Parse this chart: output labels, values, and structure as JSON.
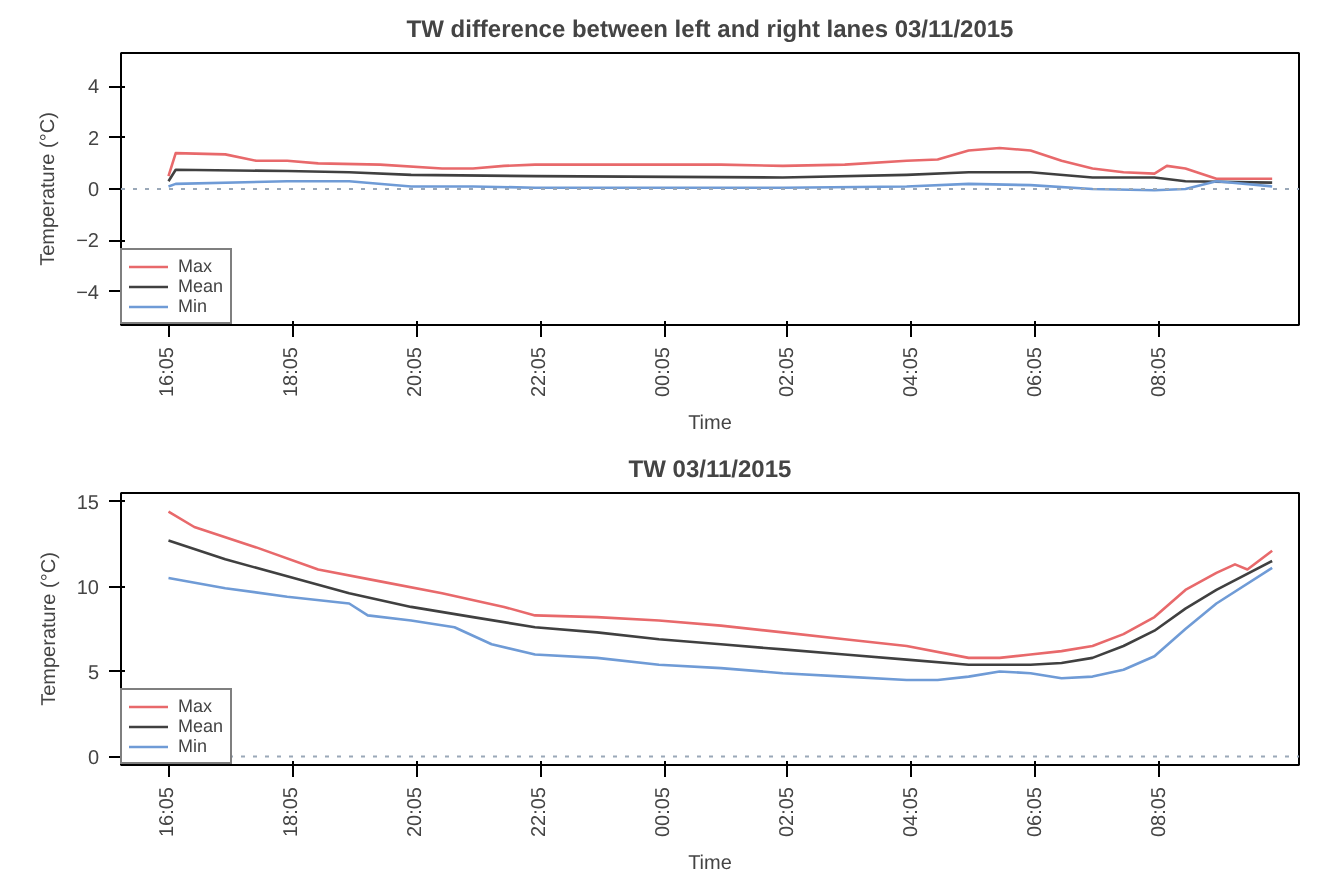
{
  "chart_data": [
    {
      "type": "line",
      "title": "TW difference between left and right lanes 03/11/2015",
      "xlabel": "Time",
      "ylabel": "Temperature (°C)",
      "xlim": [
        "2015-11-03T15:19",
        "2015-11-04T10:20"
      ],
      "ylim": [
        -5.3,
        5.3
      ],
      "xticks": [
        {
          "value": "2015-11-03T16:05",
          "label": "16:05"
        },
        {
          "value": "2015-11-03T18:05",
          "label": "18:05"
        },
        {
          "value": "2015-11-03T20:05",
          "label": "20:05"
        },
        {
          "value": "2015-11-03T22:05",
          "label": "22:05"
        },
        {
          "value": "2015-11-04T00:05",
          "label": "00:05"
        },
        {
          "value": "2015-11-04T02:05",
          "label": "02:05"
        },
        {
          "value": "2015-11-04T04:05",
          "label": "04:05"
        },
        {
          "value": "2015-11-04T06:05",
          "label": "06:05"
        },
        {
          "value": "2015-11-04T08:05",
          "label": "08:05"
        }
      ],
      "yticks": [
        -4,
        -2,
        0,
        2,
        4
      ],
      "grid": false,
      "legend": "bottom left",
      "line_style": "solid",
      "marker": "none",
      "ref_lines": [
        {
          "axis": "y",
          "value": 0,
          "color": "#9aa8b8",
          "line_style": "dotted"
        }
      ],
      "series": [
        {
          "name": "Max",
          "color": "#e8696b",
          "x": [
            "2015-11-03T16:05",
            "2015-11-03T16:12",
            "2015-11-03T17:00",
            "2015-11-03T17:30",
            "2015-11-03T18:00",
            "2015-11-03T18:30",
            "2015-11-03T19:30",
            "2015-11-03T20:30",
            "2015-11-03T21:00",
            "2015-11-03T21:30",
            "2015-11-03T22:00",
            "2015-11-04T00:00",
            "2015-11-04T01:00",
            "2015-11-04T02:00",
            "2015-11-04T03:00",
            "2015-11-04T04:00",
            "2015-11-04T04:30",
            "2015-11-04T05:00",
            "2015-11-04T05:30",
            "2015-11-04T06:00",
            "2015-11-04T06:30",
            "2015-11-04T07:00",
            "2015-11-04T07:30",
            "2015-11-04T08:00",
            "2015-11-04T08:12",
            "2015-11-04T08:30",
            "2015-11-04T09:00",
            "2015-11-04T09:54"
          ],
          "values": [
            0.5,
            1.4,
            1.35,
            1.1,
            1.1,
            1.0,
            0.95,
            0.8,
            0.8,
            0.9,
            0.95,
            0.95,
            0.95,
            0.9,
            0.95,
            1.1,
            1.15,
            1.5,
            1.6,
            1.5,
            1.1,
            0.8,
            0.65,
            0.6,
            0.9,
            0.8,
            0.4,
            0.4
          ]
        },
        {
          "name": "Mean",
          "color": "#404040",
          "x": [
            "2015-11-03T16:05",
            "2015-11-03T16:12",
            "2015-11-03T18:00",
            "2015-11-03T19:00",
            "2015-11-03T20:00",
            "2015-11-03T22:00",
            "2015-11-04T02:00",
            "2015-11-04T04:00",
            "2015-11-04T05:00",
            "2015-11-04T06:00",
            "2015-11-04T07:00",
            "2015-11-04T08:00",
            "2015-11-04T08:30",
            "2015-11-04T09:54"
          ],
          "values": [
            0.3,
            0.75,
            0.7,
            0.65,
            0.55,
            0.5,
            0.45,
            0.55,
            0.65,
            0.65,
            0.45,
            0.45,
            0.3,
            0.25
          ]
        },
        {
          "name": "Min",
          "color": "#6f9bd6",
          "x": [
            "2015-11-03T16:05",
            "2015-11-03T16:12",
            "2015-11-03T18:00",
            "2015-11-03T19:00",
            "2015-11-03T20:00",
            "2015-11-03T21:00",
            "2015-11-03T22:00",
            "2015-11-04T02:00",
            "2015-11-04T04:00",
            "2015-11-04T05:00",
            "2015-11-04T06:00",
            "2015-11-04T07:00",
            "2015-11-04T08:00",
            "2015-11-04T08:30",
            "2015-11-04T09:00",
            "2015-11-04T09:54"
          ],
          "values": [
            0.1,
            0.2,
            0.3,
            0.3,
            0.1,
            0.1,
            0.05,
            0.05,
            0.1,
            0.2,
            0.15,
            0.0,
            -0.05,
            0.0,
            0.3,
            0.1
          ]
        }
      ]
    },
    {
      "type": "line",
      "title": "TW 03/11/2015",
      "xlabel": "Time",
      "ylabel": "Temperature (°C)",
      "xlim": [
        "2015-11-03T15:19",
        "2015-11-04T10:20"
      ],
      "ylim": [
        -0.5,
        15.5
      ],
      "xticks": [
        {
          "value": "2015-11-03T16:05",
          "label": "16:05"
        },
        {
          "value": "2015-11-03T18:05",
          "label": "18:05"
        },
        {
          "value": "2015-11-03T20:05",
          "label": "20:05"
        },
        {
          "value": "2015-11-03T22:05",
          "label": "22:05"
        },
        {
          "value": "2015-11-04T00:05",
          "label": "00:05"
        },
        {
          "value": "2015-11-04T02:05",
          "label": "02:05"
        },
        {
          "value": "2015-11-04T04:05",
          "label": "04:05"
        },
        {
          "value": "2015-11-04T06:05",
          "label": "06:05"
        },
        {
          "value": "2015-11-04T08:05",
          "label": "08:05"
        }
      ],
      "yticks": [
        0,
        5,
        10,
        15
      ],
      "grid": false,
      "legend": "bottom left",
      "line_style": "solid",
      "marker": "none",
      "ref_lines": [
        {
          "axis": "y",
          "value": 0,
          "color": "#9aa8b8",
          "line_style": "dotted"
        }
      ],
      "series": [
        {
          "name": "Max",
          "color": "#e8696b",
          "x": [
            "2015-11-03T16:05",
            "2015-11-03T16:30",
            "2015-11-03T17:30",
            "2015-11-03T18:30",
            "2015-11-03T19:30",
            "2015-11-03T20:30",
            "2015-11-03T21:30",
            "2015-11-03T22:00",
            "2015-11-03T23:00",
            "2015-11-04T00:00",
            "2015-11-04T01:00",
            "2015-11-04T02:00",
            "2015-11-04T03:00",
            "2015-11-04T04:00",
            "2015-11-04T05:00",
            "2015-11-04T05:30",
            "2015-11-04T06:00",
            "2015-11-04T06:30",
            "2015-11-04T07:00",
            "2015-11-04T07:30",
            "2015-11-04T08:00",
            "2015-11-04T08:30",
            "2015-11-04T09:00",
            "2015-11-04T09:18",
            "2015-11-04T09:30",
            "2015-11-04T09:54"
          ],
          "values": [
            14.4,
            13.5,
            12.3,
            11.0,
            10.3,
            9.6,
            8.8,
            8.3,
            8.2,
            8.0,
            7.7,
            7.3,
            6.9,
            6.5,
            5.8,
            5.8,
            6.0,
            6.2,
            6.5,
            7.2,
            8.2,
            9.8,
            10.8,
            11.3,
            11.0,
            12.1
          ]
        },
        {
          "name": "Mean",
          "color": "#404040",
          "x": [
            "2015-11-03T16:05",
            "2015-11-03T17:00",
            "2015-11-03T18:00",
            "2015-11-03T19:00",
            "2015-11-03T20:00",
            "2015-11-03T21:00",
            "2015-11-03T22:00",
            "2015-11-03T23:00",
            "2015-11-04T00:00",
            "2015-11-04T01:00",
            "2015-11-04T02:00",
            "2015-11-04T03:00",
            "2015-11-04T04:00",
            "2015-11-04T05:00",
            "2015-11-04T06:00",
            "2015-11-04T06:30",
            "2015-11-04T07:00",
            "2015-11-04T07:30",
            "2015-11-04T08:00",
            "2015-11-04T08:30",
            "2015-11-04T09:00",
            "2015-11-04T09:54"
          ],
          "values": [
            12.7,
            11.6,
            10.6,
            9.6,
            8.8,
            8.2,
            7.6,
            7.3,
            6.9,
            6.6,
            6.3,
            6.0,
            5.7,
            5.4,
            5.4,
            5.5,
            5.8,
            6.5,
            7.4,
            8.7,
            9.8,
            11.5
          ]
        },
        {
          "name": "Min",
          "color": "#6f9bd6",
          "x": [
            "2015-11-03T16:05",
            "2015-11-03T17:00",
            "2015-11-03T18:00",
            "2015-11-03T19:00",
            "2015-11-03T19:18",
            "2015-11-03T20:00",
            "2015-11-03T20:42",
            "2015-11-03T21:18",
            "2015-11-03T22:00",
            "2015-11-03T23:00",
            "2015-11-04T00:00",
            "2015-11-04T01:00",
            "2015-11-04T02:00",
            "2015-11-04T03:00",
            "2015-11-04T04:00",
            "2015-11-04T04:30",
            "2015-11-04T05:00",
            "2015-11-04T05:30",
            "2015-11-04T06:00",
            "2015-11-04T06:30",
            "2015-11-04T07:00",
            "2015-11-04T07:30",
            "2015-11-04T08:00",
            "2015-11-04T08:30",
            "2015-11-04T09:00",
            "2015-11-04T09:54"
          ],
          "values": [
            10.5,
            9.9,
            9.4,
            9.0,
            8.3,
            8.0,
            7.6,
            6.6,
            6.0,
            5.8,
            5.4,
            5.2,
            4.9,
            4.7,
            4.5,
            4.5,
            4.7,
            5.0,
            4.9,
            4.6,
            4.7,
            5.1,
            5.9,
            7.5,
            9.0,
            11.1
          ]
        }
      ]
    }
  ]
}
